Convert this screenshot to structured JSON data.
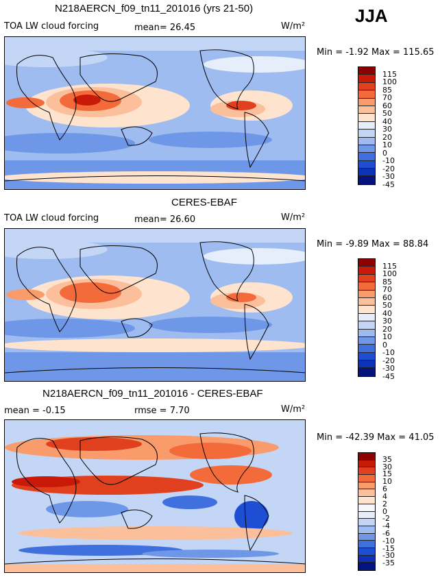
{
  "season": "JJA",
  "panels": [
    {
      "title": "N218AERCN_f09_tn11_201016 (yrs 21-50)",
      "field": "TOA LW cloud forcing",
      "stat1": "mean=  26.45",
      "stat2": "",
      "units": "W/m²",
      "minmax": "Min =  -1.92 Max = 115.65",
      "levels": [
        "115",
        "100",
        "85",
        "70",
        "60",
        "50",
        "40",
        "30",
        "20",
        "10",
        "0",
        "-10",
        "-20",
        "-30",
        "-45"
      ],
      "colors": [
        "#8b0000",
        "#c91a09",
        "#e0401d",
        "#f36b3a",
        "#f99b6a",
        "#fbbf9b",
        "#fee4ce",
        "#e6eefb",
        "#c3d6f6",
        "#9ebcf0",
        "#6e97e8",
        "#3f70de",
        "#1e4fd2",
        "#0d32b8",
        "#04137e"
      ]
    },
    {
      "title": "CERES-EBAF",
      "field": "TOA LW cloud forcing",
      "stat1": "mean=  26.60",
      "stat2": "",
      "units": "W/m²",
      "minmax": "Min =  -9.89 Max =  88.84",
      "levels": [
        "115",
        "100",
        "85",
        "70",
        "60",
        "50",
        "40",
        "30",
        "20",
        "10",
        "0",
        "-10",
        "-20",
        "-30",
        "-45"
      ],
      "colors": [
        "#8b0000",
        "#c91a09",
        "#e0401d",
        "#f36b3a",
        "#f99b6a",
        "#fbbf9b",
        "#fee4ce",
        "#e6eefb",
        "#c3d6f6",
        "#9ebcf0",
        "#6e97e8",
        "#3f70de",
        "#1e4fd2",
        "#0d32b8",
        "#04137e"
      ]
    },
    {
      "title": "N218AERCN_f09_tn11_201016 - CERES-EBAF",
      "field": "",
      "stat1": "mean =  -0.15",
      "stat2": "rmse =   7.70",
      "units": "W/m²",
      "minmax": "Min = -42.39 Max =  41.05",
      "levels": [
        "35",
        "30",
        "15",
        "10",
        "6",
        "4",
        "2",
        "0",
        "-2",
        "-4",
        "-6",
        "-10",
        "-15",
        "-30",
        "-35"
      ],
      "colors": [
        "#8b0000",
        "#c91a09",
        "#e0401d",
        "#f36b3a",
        "#f99b6a",
        "#fbbf9b",
        "#fee4ce",
        "#f4f6fb",
        "#e6eefb",
        "#c3d6f6",
        "#9ebcf0",
        "#6e97e8",
        "#3f70de",
        "#1e4fd2",
        "#0d32b8",
        "#04137e"
      ]
    }
  ],
  "chart_data": [
    {
      "type": "heatmap",
      "title": "N218AERCN_f09_tn11_201016 (yrs 21-50)",
      "subtitle": "TOA LW cloud forcing",
      "season": "JJA",
      "units": "W/m²",
      "mean": 26.45,
      "min": -1.92,
      "max": 115.65,
      "contour_levels": [
        -45,
        -30,
        -20,
        -10,
        0,
        10,
        20,
        30,
        40,
        50,
        60,
        70,
        85,
        100,
        115
      ]
    },
    {
      "type": "heatmap",
      "title": "CERES-EBAF",
      "subtitle": "TOA LW cloud forcing",
      "season": "JJA",
      "units": "W/m²",
      "mean": 26.6,
      "min": -9.89,
      "max": 88.84,
      "contour_levels": [
        -45,
        -30,
        -20,
        -10,
        0,
        10,
        20,
        30,
        40,
        50,
        60,
        70,
        85,
        100,
        115
      ]
    },
    {
      "type": "heatmap",
      "title": "N218AERCN_f09_tn11_201016 - CERES-EBAF",
      "season": "JJA",
      "units": "W/m²",
      "mean": -0.15,
      "rmse": 7.7,
      "min": -42.39,
      "max": 41.05,
      "contour_levels": [
        -35,
        -30,
        -15,
        -10,
        -6,
        -4,
        -2,
        0,
        2,
        4,
        6,
        10,
        15,
        30,
        35
      ]
    }
  ]
}
